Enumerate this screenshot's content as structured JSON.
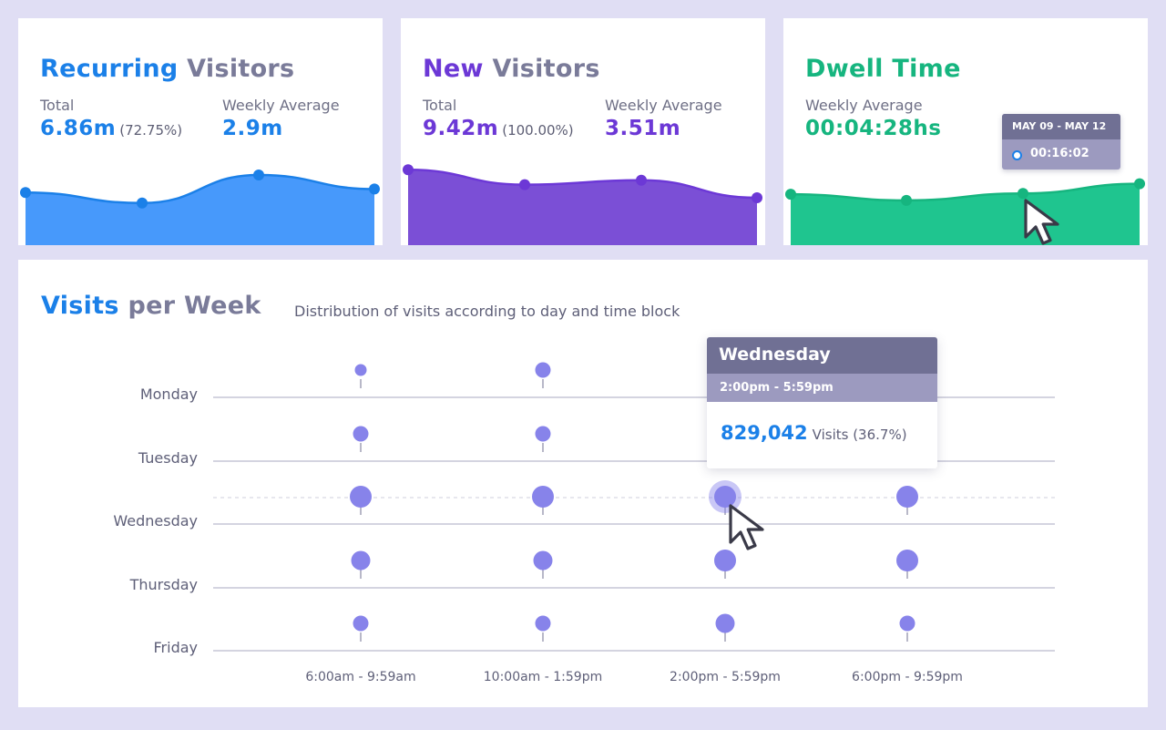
{
  "colors": {
    "recurring": "#1b80e8",
    "recurring_area": "#4799fb",
    "new": "#6c38d6",
    "new_area": "#7b4fd6",
    "dwell": "#16b57f",
    "dwell_area": "#1fc58f",
    "bubble": "#8783ea",
    "slate": "#7a7b99"
  },
  "cards": {
    "recurring": {
      "title_accent": "Recurring",
      "title_rest": "Visitors",
      "total_label": "Total",
      "total_value": "6.86m",
      "total_pct": "(72.75%)",
      "avg_label": "Weekly Average",
      "avg_value": "2.9m",
      "series": [
        0.56,
        0.44,
        0.76,
        0.6
      ]
    },
    "new": {
      "title_accent": "New",
      "title_rest": "Visitors",
      "total_label": "Total",
      "total_value": "9.42m",
      "total_pct": "(100.00%)",
      "avg_label": "Weekly Average",
      "avg_value": "3.51m",
      "series": [
        0.82,
        0.65,
        0.7,
        0.5
      ]
    },
    "dwell": {
      "title": "Dwell Time",
      "avg_label": "Weekly Average",
      "avg_value": "00:04:28hs",
      "series": [
        0.54,
        0.47,
        0.55,
        0.66
      ],
      "tooltip": {
        "range": "MAY 09 - MAY 12",
        "value": "00:16:02"
      }
    }
  },
  "visits": {
    "title_accent": "Visits",
    "title_rest": "per Week",
    "subtitle": "Distribution of visits according to day and time block",
    "tooltip": {
      "day": "Wednesday",
      "block": "2:00pm - 5:59pm",
      "value": "829,042",
      "unit": "Visits (36.7%)"
    }
  },
  "chart_data": {
    "type": "scatter",
    "x_categories": [
      "6:00am - 9:59am",
      "10:00am - 1:59pm",
      "2:00pm - 5:59pm",
      "6:00pm - 9:59pm"
    ],
    "y_categories": [
      "Monday",
      "Tuesday",
      "Wednesday",
      "Thursday",
      "Friday"
    ],
    "bubble_size": [
      [
        1,
        2,
        null,
        null
      ],
      [
        2,
        2,
        null,
        null
      ],
      [
        4,
        4,
        4,
        4
      ],
      [
        3,
        3,
        4,
        4
      ],
      [
        2,
        2,
        3,
        2
      ]
    ],
    "highlight": {
      "day": "Wednesday",
      "block": "2:00pm - 5:59pm"
    }
  }
}
